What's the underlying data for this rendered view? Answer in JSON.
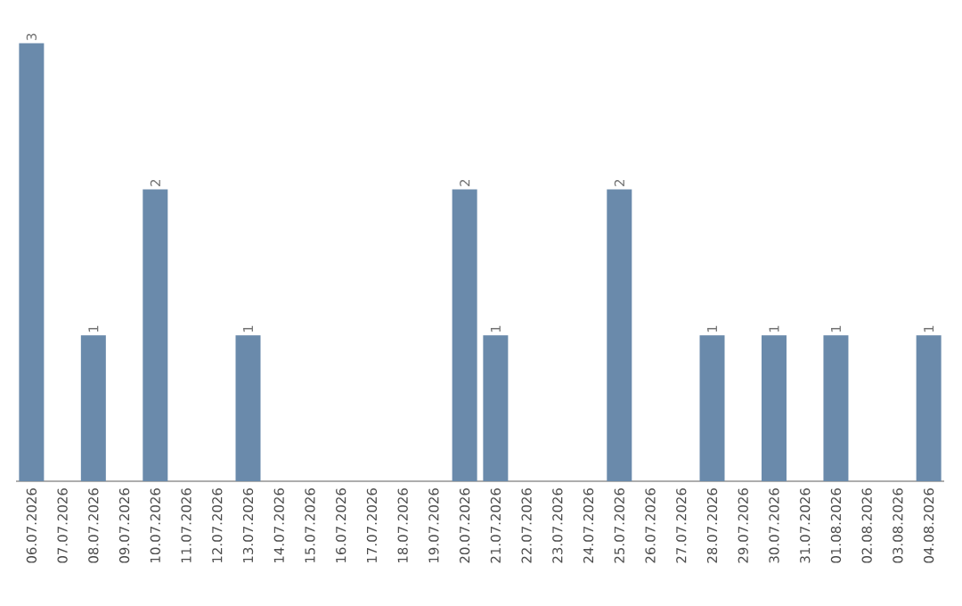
{
  "chart_data": {
    "type": "bar",
    "categories": [
      "06.07.2026",
      "07.07.2026",
      "08.07.2026",
      "09.07.2026",
      "10.07.2026",
      "11.07.2026",
      "12.07.2026",
      "13.07.2026",
      "14.07.2026",
      "15.07.2026",
      "16.07.2026",
      "17.07.2026",
      "18.07.2026",
      "19.07.2026",
      "20.07.2026",
      "21.07.2026",
      "22.07.2026",
      "23.07.2026",
      "24.07.2026",
      "25.07.2026",
      "26.07.2026",
      "27.07.2026",
      "28.07.2026",
      "29.07.2026",
      "30.07.2026",
      "31.07.2026",
      "01.08.2026",
      "02.08.2026",
      "03.08.2026",
      "04.08.2026"
    ],
    "values": [
      3,
      0,
      1,
      0,
      2,
      0,
      0,
      1,
      0,
      0,
      0,
      0,
      0,
      0,
      2,
      1,
      0,
      0,
      0,
      2,
      0,
      0,
      1,
      0,
      1,
      0,
      1,
      0,
      0,
      1
    ],
    "color": "#6a8aab",
    "value_labels": [
      "3",
      null,
      "1",
      null,
      "2",
      null,
      null,
      "1",
      null,
      null,
      null,
      null,
      null,
      null,
      "2",
      "1",
      null,
      null,
      null,
      "2",
      null,
      null,
      "1",
      null,
      "1",
      null,
      "1",
      null,
      null,
      "1"
    ],
    "tick_labels": "x"
  }
}
